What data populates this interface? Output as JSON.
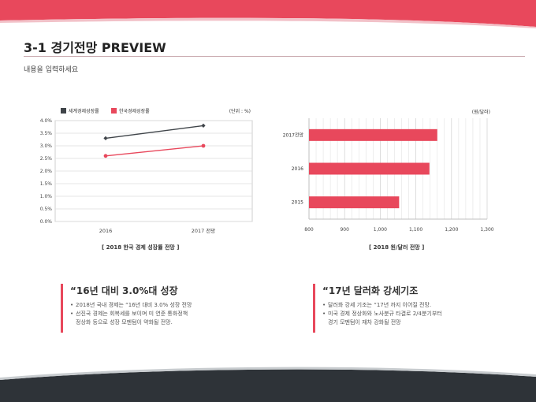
{
  "colors": {
    "accent": "#e8485c",
    "dark": "#2e3338",
    "grid": "#d9d9d9"
  },
  "header": {
    "title": "3-1 경기전망 PREVIEW",
    "subtitle": "내용을 입력하세요"
  },
  "chart_data": [
    {
      "type": "line",
      "x": [
        "2016",
        "2017 전망"
      ],
      "series": [
        {
          "name": "세계경제성장률",
          "values": [
            3.3,
            3.8
          ],
          "color": "#3f4449"
        },
        {
          "name": "한국경제성장률",
          "values": [
            2.6,
            3.0
          ],
          "color": "#e8485c"
        }
      ],
      "ylim": [
        0.0,
        4.0
      ],
      "yticks": [
        "0.0%",
        "0.5%",
        "1.0%",
        "1.5%",
        "2.0%",
        "2.5%",
        "3.0%",
        "3.5%",
        "4.0%"
      ],
      "unit_label": "(단위 : %)",
      "grid": true,
      "legend": "top-left",
      "caption": "[ 2018 한국 경제 성장률 전망 ]"
    },
    {
      "type": "bar",
      "orientation": "horizontal",
      "categories": [
        "2017전망",
        "2016",
        "2015"
      ],
      "values": [
        1160,
        1138,
        1053
      ],
      "xlim": [
        800,
        1300
      ],
      "xticks": [
        "800",
        "900",
        "1,000",
        "1,100",
        "1,200",
        "1,300"
      ],
      "unit_label": "(원/달러)",
      "grid": true,
      "caption": "[ 2018 원/달러 전망 ]"
    }
  ],
  "blocks": [
    {
      "heading": "“16년 대비 3.0%대 성장",
      "items": [
        {
          "line1": "2018년 국내 경제는 “16년 대비 3.0% 성장 전망",
          "line2": ""
        },
        {
          "line1": "선진국 경제는 회복세를 보이며 미 연준 통화정책",
          "line2": "정상화 등으로 성장 모멘텀이 약화될 전망."
        }
      ]
    },
    {
      "heading": "“17년 달러화 강세기조",
      "items": [
        {
          "line1": "달러화 강세 기조는 “17년 까지 이어질 전망.",
          "line2": ""
        },
        {
          "line1": "미국 경제 정상화와 노사분규 타결로 2/4분기부터",
          "line2": "경기 모멘텀이 재차 강화될 전망"
        }
      ]
    }
  ]
}
